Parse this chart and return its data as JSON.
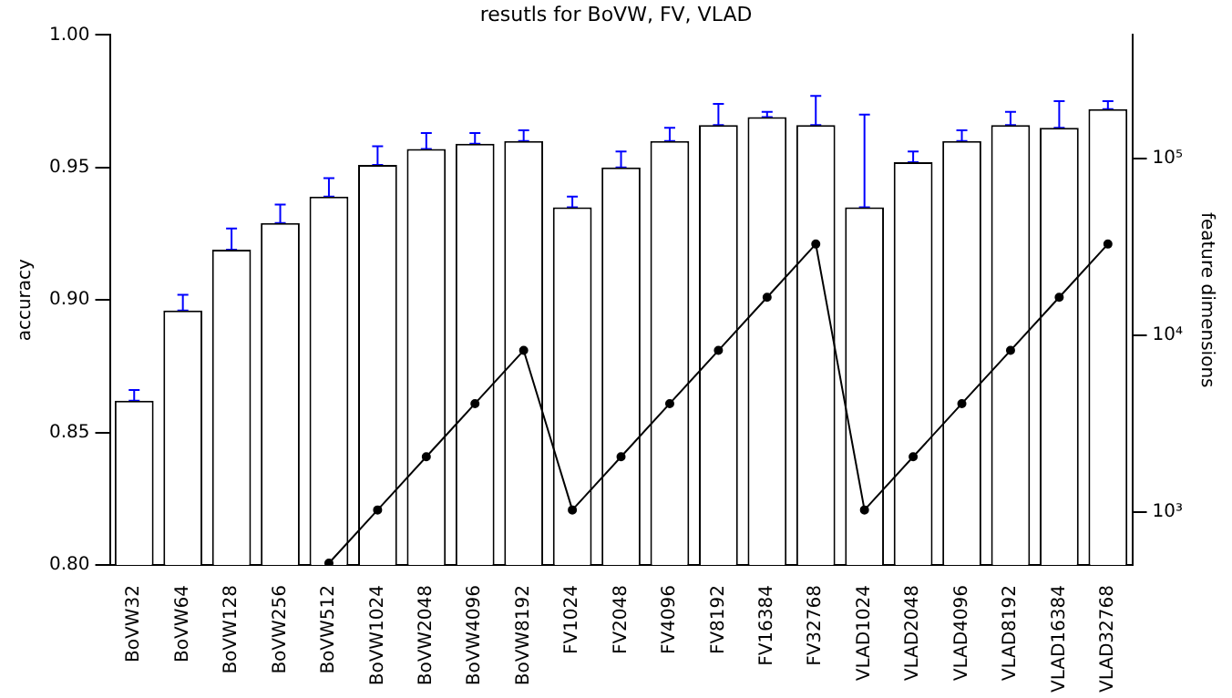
{
  "chart_data": {
    "type": "bar",
    "title": "resutls for BoVW, FV, VLAD",
    "ylabel": "accuracy",
    "y2label": "feature dimensions",
    "categories": [
      "BoVW32",
      "BoVW64",
      "BoVW128",
      "BoVW256",
      "BoVW512",
      "BoVW1024",
      "BoVW2048",
      "BoVW4096",
      "BoVW8192",
      "FV1024",
      "FV2048",
      "FV4096",
      "FV8192",
      "FV16384",
      "FV32768",
      "VLAD1024",
      "VLAD2048",
      "VLAD4096",
      "VLAD8192",
      "VLAD16384",
      "VLAD32768"
    ],
    "series": [
      {
        "color": "#ffffff",
        "values": [
          0.862,
          0.896,
          0.919,
          0.929,
          0.939,
          0.951,
          0.957,
          0.959,
          0.96,
          0.935,
          0.95,
          0.96,
          0.966,
          0.969,
          0.966,
          0.935,
          0.952,
          0.96,
          0.966,
          0.965,
          0.972
        ],
        "errors": [
          [
            0.862,
            0.866
          ],
          [
            0.896,
            0.902
          ],
          [
            0.919,
            0.927
          ],
          [
            0.929,
            0.936
          ],
          [
            0.939,
            0.946
          ],
          [
            0.951,
            0.958
          ],
          [
            0.957,
            0.963
          ],
          [
            0.959,
            0.963
          ],
          [
            0.96,
            0.964
          ],
          [
            0.935,
            0.939
          ],
          [
            0.95,
            0.956
          ],
          [
            0.96,
            0.965
          ],
          [
            0.966,
            0.974
          ],
          [
            0.969,
            0.971
          ],
          [
            0.966,
            0.977
          ],
          [
            0.935,
            0.97
          ],
          [
            0.952,
            0.956
          ],
          [
            0.96,
            0.964
          ],
          [
            0.966,
            0.971
          ],
          [
            0.965,
            0.975
          ],
          [
            0.972,
            0.975
          ]
        ]
      },
      {
        "type": "line",
        "axis": "y2",
        "color": "#000000",
        "marker": "circle",
        "values": [
          null,
          null,
          null,
          null,
          512,
          1024,
          2048,
          4096,
          8192,
          1024,
          2048,
          4096,
          8192,
          16384,
          32768,
          1024,
          2048,
          4096,
          8192,
          16384,
          32768
        ]
      }
    ],
    "ylim": [
      0.8,
      1.0
    ],
    "yticks": [
      {
        "value": 0.8,
        "label": "0.80"
      },
      {
        "value": 0.85,
        "label": "0.85"
      },
      {
        "value": 0.9,
        "label": "0.90"
      },
      {
        "value": 0.95,
        "label": "0.95"
      },
      {
        "value": 1.0,
        "label": "1.00"
      }
    ],
    "y2lim": [
      500,
      500000
    ],
    "y2ticks": [
      {
        "value": 1000,
        "label": "10³"
      },
      {
        "value": 10000,
        "label": "10⁴"
      },
      {
        "value": 100000,
        "label": "10⁵"
      }
    ],
    "log": "y2",
    "grid": false,
    "legend": false
  }
}
